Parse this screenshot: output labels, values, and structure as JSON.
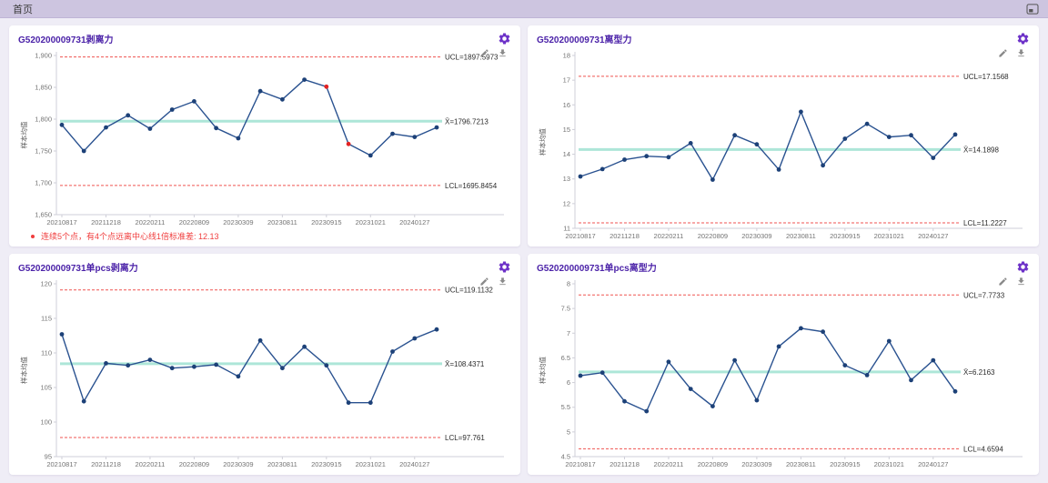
{
  "header": {
    "tab_label": "首页"
  },
  "colors": {
    "accent_purple": "#6d32c8",
    "title_purple": "#4b22a8",
    "series_line": "#2a5290",
    "marker_fill": "#1d4178",
    "limit_red": "#ef5350",
    "center_teal": "#9fe2d2",
    "out_of_control_red": "#e42222",
    "warning_red": "#f03e3e",
    "axis_gray": "#cfcfd8"
  },
  "chart_data": [
    {
      "type": "line",
      "title": "G520200009731剥离力",
      "ylabel": "样本均值",
      "ylim": [
        1650,
        1900
      ],
      "yticks": [
        {
          "v": 1650,
          "label": "1,650"
        },
        {
          "v": 1700,
          "label": "1,700"
        },
        {
          "v": 1750,
          "label": "1,750"
        },
        {
          "v": 1800,
          "label": "1,800"
        },
        {
          "v": 1850,
          "label": "1,850"
        },
        {
          "v": 1900,
          "label": "1,900"
        }
      ],
      "x_labels": [
        "20210817",
        "20211218",
        "20220211",
        "20220809",
        "20230309",
        "20230811",
        "20230915",
        "20231021",
        "20240127"
      ],
      "values": [
        1791,
        1750,
        1787,
        1806,
        1785,
        1815,
        1828,
        1786,
        1770,
        1844,
        1831,
        1862,
        1851,
        1761,
        1743,
        1777,
        1772,
        1787
      ],
      "red_points": [
        12,
        13
      ],
      "ucl": {
        "value": 1897.5973,
        "label": "UCL=1897.5973"
      },
      "center": {
        "value": 1796.7213,
        "label": "X̄=1796.7213"
      },
      "lcl": {
        "value": 1695.8454,
        "label": "LCL=1695.8454"
      },
      "legend_position": "right",
      "grid": false,
      "warning": "连续5个点，有4个点远离中心线1倍标准差: 12.13"
    },
    {
      "type": "line",
      "title": "G520200009731离型力",
      "ylabel": "样本均值",
      "ylim": [
        11,
        18
      ],
      "yticks": [
        {
          "v": 11,
          "label": "11"
        },
        {
          "v": 12,
          "label": "12"
        },
        {
          "v": 13,
          "label": "13"
        },
        {
          "v": 14,
          "label": "14"
        },
        {
          "v": 15,
          "label": "15"
        },
        {
          "v": 16,
          "label": "16"
        },
        {
          "v": 17,
          "label": "17"
        },
        {
          "v": 18,
          "label": "18"
        }
      ],
      "x_labels": [
        "20210817",
        "20211218",
        "20220211",
        "20220809",
        "20230309",
        "20230811",
        "20230915",
        "20231021",
        "20240127"
      ],
      "values": [
        13.1,
        13.4,
        13.78,
        13.92,
        13.88,
        14.45,
        12.97,
        14.77,
        14.4,
        13.38,
        15.72,
        13.55,
        14.63,
        15.23,
        14.7,
        14.77,
        13.85,
        14.8
      ],
      "red_points": [],
      "ucl": {
        "value": 17.1568,
        "label": "UCL=17.1568"
      },
      "center": {
        "value": 14.1898,
        "label": "X̄=14.1898"
      },
      "lcl": {
        "value": 11.2227,
        "label": "LCL=11.2227"
      },
      "legend_position": "right",
      "grid": false,
      "warning": ""
    },
    {
      "type": "line",
      "title": "G520200009731单pcs剥离力",
      "ylabel": "样本均值",
      "ylim": [
        95,
        120
      ],
      "yticks": [
        {
          "v": 95,
          "label": "95"
        },
        {
          "v": 100,
          "label": "100"
        },
        {
          "v": 105,
          "label": "105"
        },
        {
          "v": 110,
          "label": "110"
        },
        {
          "v": 115,
          "label": "115"
        },
        {
          "v": 120,
          "label": "120"
        }
      ],
      "x_labels": [
        "20210817",
        "20211218",
        "20220211",
        "20220809",
        "20230309",
        "20230811",
        "20230915",
        "20231021",
        "20240127"
      ],
      "values": [
        112.7,
        103.0,
        108.5,
        108.2,
        109.0,
        107.8,
        108.0,
        108.3,
        106.6,
        111.8,
        107.8,
        110.9,
        108.2,
        102.8,
        102.8,
        110.2,
        112.1,
        113.4
      ],
      "red_points": [],
      "ucl": {
        "value": 119.1132,
        "label": "UCL=119.1132"
      },
      "center": {
        "value": 108.4371,
        "label": "X̄=108.4371"
      },
      "lcl": {
        "value": 97.761,
        "label": "LCL=97.761"
      },
      "legend_position": "right",
      "grid": false,
      "warning": ""
    },
    {
      "type": "line",
      "title": "G520200009731单pcs离型力",
      "ylabel": "样本均值",
      "ylim": [
        4.5,
        8
      ],
      "yticks": [
        {
          "v": 4.5,
          "label": "4.5"
        },
        {
          "v": 5,
          "label": "5"
        },
        {
          "v": 5.5,
          "label": "5.5"
        },
        {
          "v": 6,
          "label": "6"
        },
        {
          "v": 6.5,
          "label": "6.5"
        },
        {
          "v": 7,
          "label": "7"
        },
        {
          "v": 7.5,
          "label": "7.5"
        },
        {
          "v": 8,
          "label": "8"
        }
      ],
      "x_labels": [
        "20210817",
        "20211218",
        "20220211",
        "20220809",
        "20230309",
        "20230811",
        "20230915",
        "20231021",
        "20240127"
      ],
      "values": [
        6.14,
        6.2,
        5.62,
        5.42,
        6.42,
        5.87,
        5.52,
        6.45,
        5.64,
        6.73,
        7.1,
        7.03,
        6.35,
        6.15,
        6.84,
        6.05,
        6.45,
        5.82
      ],
      "red_points": [],
      "ucl": {
        "value": 7.7733,
        "label": "UCL=7.7733"
      },
      "center": {
        "value": 6.2163,
        "label": "X̄=6.2163"
      },
      "lcl": {
        "value": 4.6594,
        "label": "LCL=4.6594"
      },
      "legend_position": "right",
      "grid": false,
      "warning": ""
    }
  ]
}
